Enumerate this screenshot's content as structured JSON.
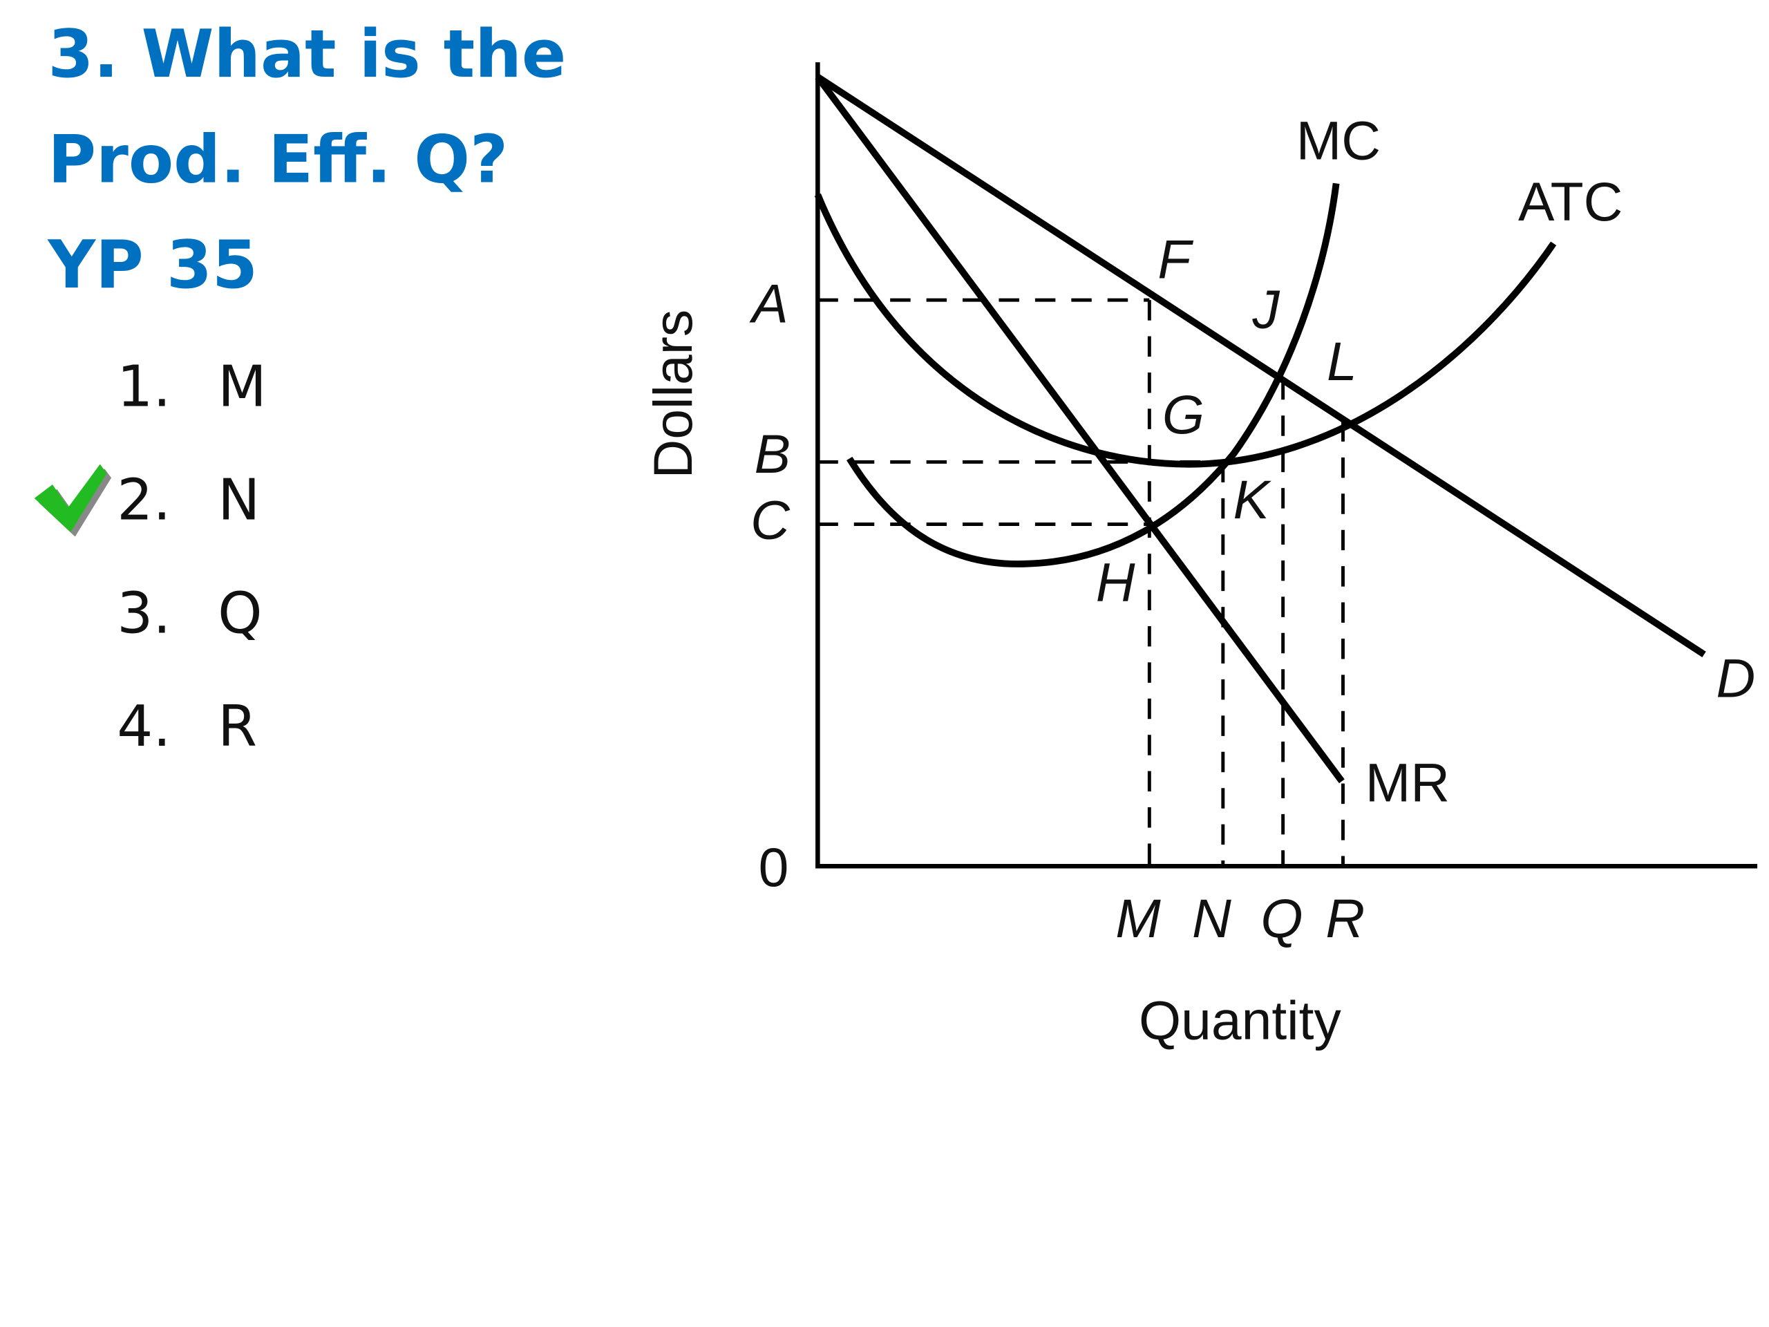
{
  "question": {
    "lines": [
      "3. What is the",
      "Prod. Eff. Q?",
      "YP 35"
    ]
  },
  "options": [
    {
      "number": "1.",
      "label": "M"
    },
    {
      "number": "2.",
      "label": "N"
    },
    {
      "number": "3.",
      "label": "Q"
    },
    {
      "number": "4.",
      "label": "R"
    }
  ],
  "diagram": {
    "y_axis_label": "Dollars",
    "x_axis_label": "Quantity",
    "origin": "0",
    "price_labels": [
      "A",
      "B",
      "C"
    ],
    "quantity_labels": [
      "M",
      "N",
      "Q",
      "R"
    ],
    "curve_labels": [
      "MC",
      "ATC",
      "D",
      "MR"
    ],
    "point_labels": [
      "F",
      "J",
      "L",
      "G",
      "K",
      "H"
    ]
  }
}
